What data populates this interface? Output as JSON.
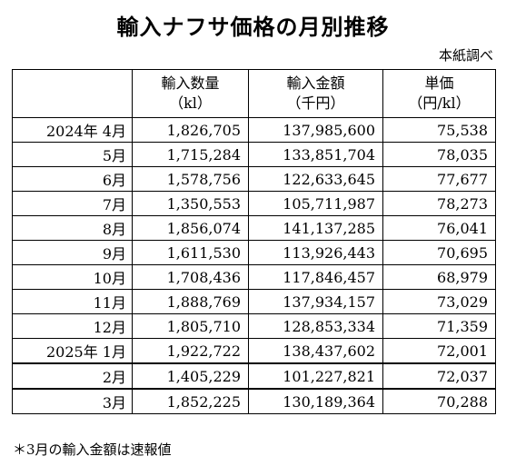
{
  "title": "輸入ナフサ価格の月別推移",
  "source": "本紙調べ",
  "headers": [
    {
      "line1": "",
      "line2": ""
    },
    {
      "line1": "輸入数量",
      "line2": "（kl）"
    },
    {
      "line1": "輸入金額",
      "line2": "（千円）"
    },
    {
      "line1": "単価",
      "line2": "（円/kl）"
    }
  ],
  "rows": [
    {
      "period": "2024年 4月",
      "volume": "1,826,705",
      "amount": "137,985,600",
      "price": "75,538"
    },
    {
      "period": "5月",
      "volume": "1,715,284",
      "amount": "133,851,704",
      "price": "78,035"
    },
    {
      "period": "6月",
      "volume": "1,578,756",
      "amount": "122,633,645",
      "price": "77,677"
    },
    {
      "period": "7月",
      "volume": "1,350,553",
      "amount": "105,711,987",
      "price": "78,273"
    },
    {
      "period": "8月",
      "volume": "1,856,074",
      "amount": "141,137,285",
      "price": "76,041"
    },
    {
      "period": "9月",
      "volume": "1,611,530",
      "amount": "113,926,443",
      "price": "70,695"
    },
    {
      "period": "10月",
      "volume": "1,708,436",
      "amount": "117,846,457",
      "price": "68,979"
    },
    {
      "period": "11月",
      "volume": "1,888,769",
      "amount": "137,934,157",
      "price": "73,029"
    },
    {
      "period": "12月",
      "volume": "1,805,710",
      "amount": "128,853,334",
      "price": "71,359"
    },
    {
      "period": "2025年 1月",
      "volume": "1,922,722",
      "amount": "138,437,602",
      "price": "72,001"
    },
    {
      "period": "2月",
      "volume": "1,405,229",
      "amount": "101,227,821",
      "price": "72,037"
    },
    {
      "period": "3月",
      "volume": "1,852,225",
      "amount": "130,189,364",
      "price": "70,288"
    }
  ],
  "note": "＊3月の輸入金額は速報値"
}
